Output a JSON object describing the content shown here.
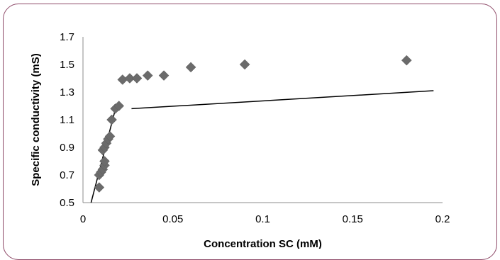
{
  "chart_data": {
    "type": "scatter",
    "title": "",
    "xlabel": "Concentration  SC (mM)",
    "ylabel": "Specific conductivity (mS)",
    "xlim": [
      0,
      0.2
    ],
    "ylim": [
      0.5,
      1.7
    ],
    "x_ticks": [
      "0",
      "0.05",
      "0.1",
      "0.15",
      "0.2"
    ],
    "y_ticks": [
      "0.5",
      "0.7",
      "0.9",
      "1.1",
      "1.3",
      "1.5",
      "1.7"
    ],
    "grid": false,
    "legend": "none",
    "marker_color": "#6b6b6b",
    "series": [
      {
        "marker": "diamond",
        "points": [
          {
            "x": 0.009,
            "y": 0.61
          },
          {
            "x": 0.009,
            "y": 0.7
          },
          {
            "x": 0.01,
            "y": 0.72
          },
          {
            "x": 0.011,
            "y": 0.74
          },
          {
            "x": 0.012,
            "y": 0.77
          },
          {
            "x": 0.012,
            "y": 0.8
          },
          {
            "x": 0.011,
            "y": 0.88
          },
          {
            "x": 0.012,
            "y": 0.9
          },
          {
            "x": 0.013,
            "y": 0.93
          },
          {
            "x": 0.014,
            "y": 0.96
          },
          {
            "x": 0.015,
            "y": 0.98
          },
          {
            "x": 0.016,
            "y": 1.1
          },
          {
            "x": 0.018,
            "y": 1.18
          },
          {
            "x": 0.02,
            "y": 1.2
          },
          {
            "x": 0.022,
            "y": 1.39
          },
          {
            "x": 0.026,
            "y": 1.4
          },
          {
            "x": 0.03,
            "y": 1.4
          },
          {
            "x": 0.036,
            "y": 1.42
          },
          {
            "x": 0.045,
            "y": 1.42
          },
          {
            "x": 0.06,
            "y": 1.48
          },
          {
            "x": 0.09,
            "y": 1.5
          },
          {
            "x": 0.18,
            "y": 1.53
          }
        ]
      }
    ],
    "trend_lines": [
      {
        "from": {
          "x": 0.0045,
          "y": 0.5
        },
        "to": {
          "x": 0.0185,
          "y": 1.2
        }
      },
      {
        "from": {
          "x": 0.027,
          "y": 1.18
        },
        "to": {
          "x": 0.195,
          "y": 1.31
        }
      }
    ]
  }
}
